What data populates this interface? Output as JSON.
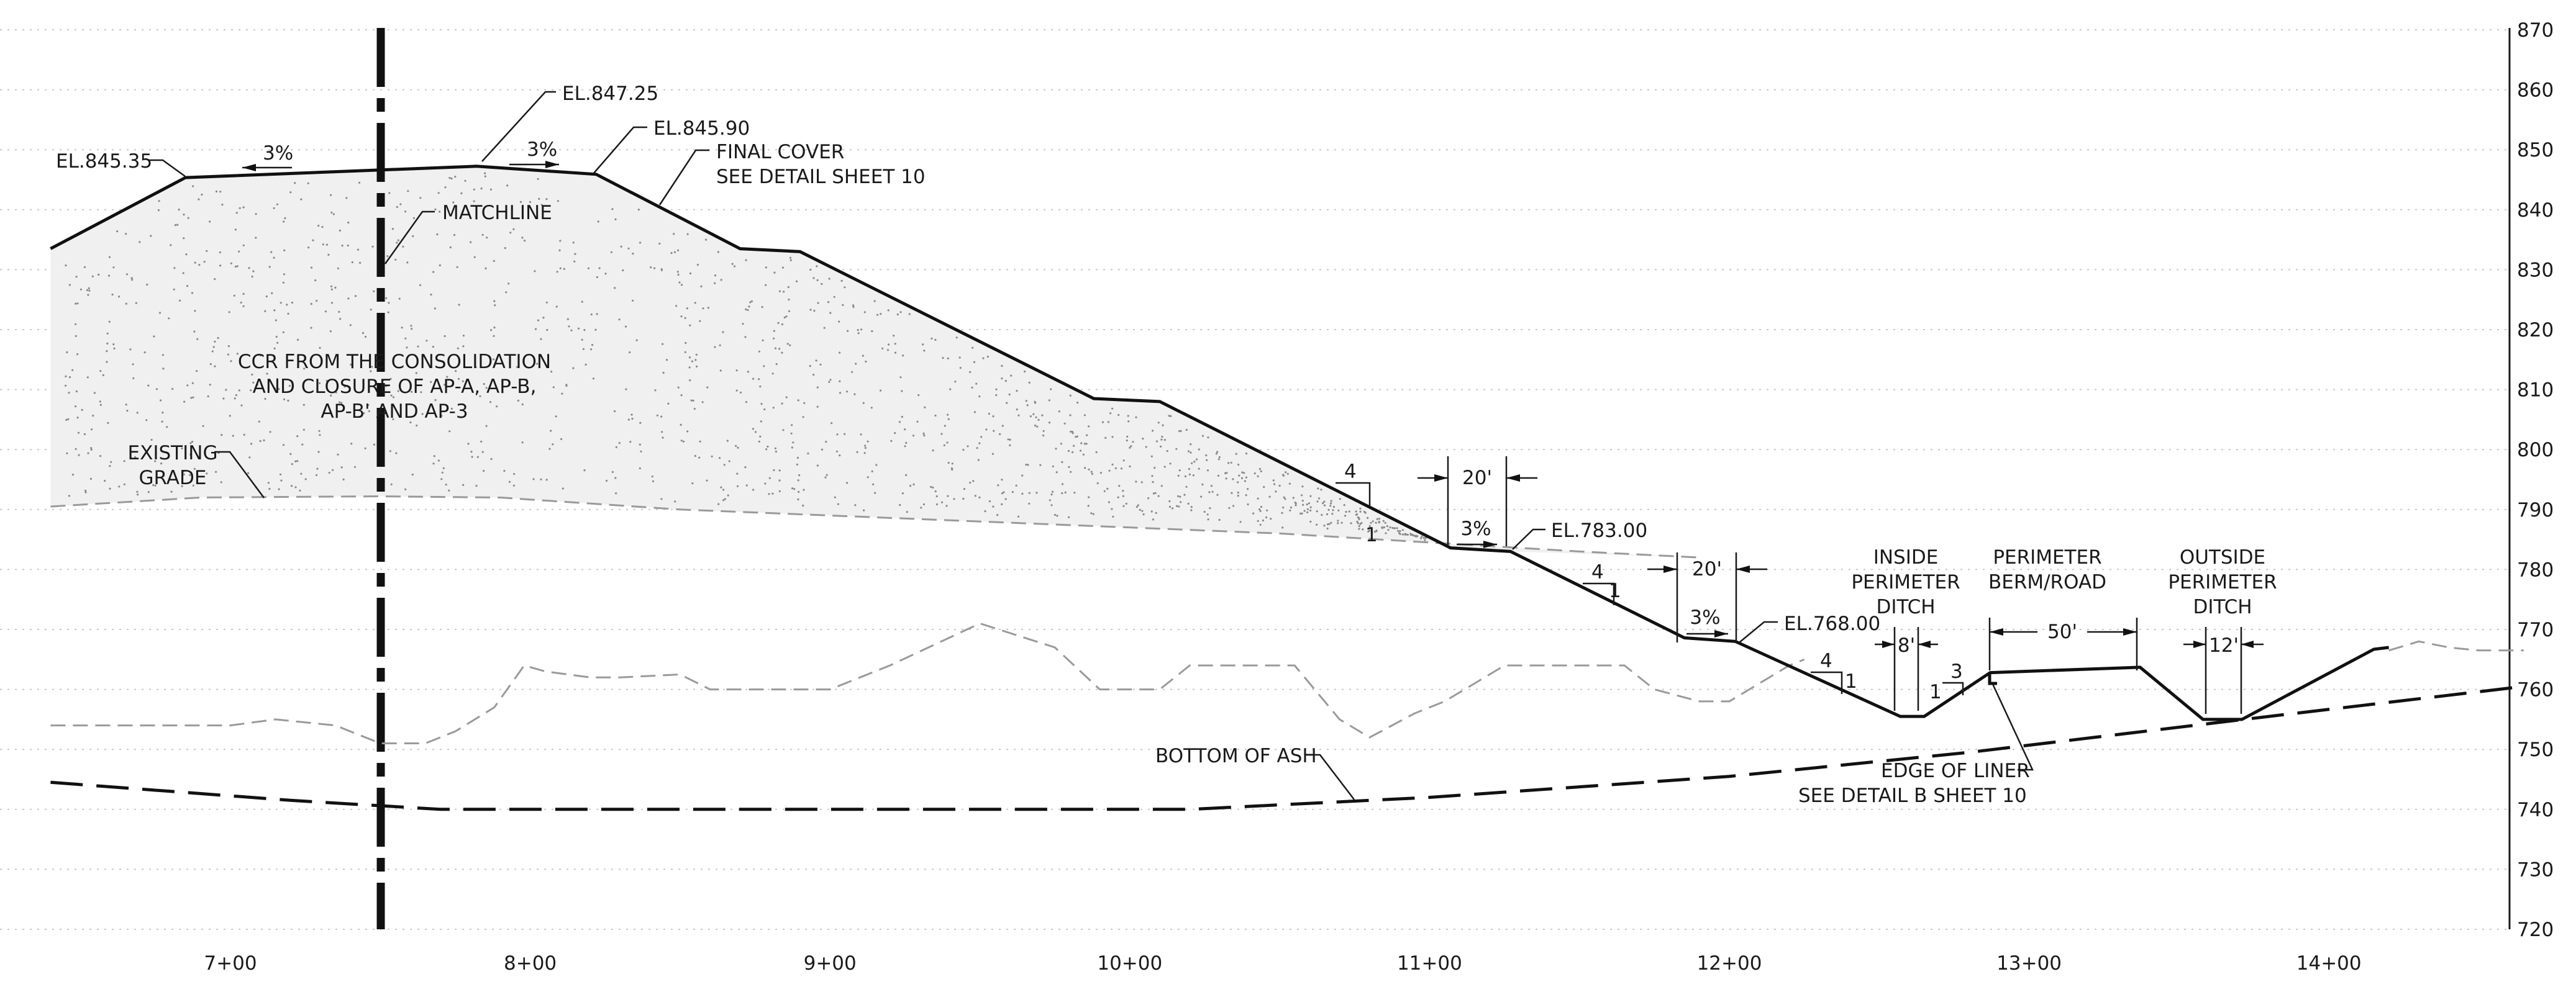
{
  "axes": {
    "elevation_ticks": [
      "870",
      "860",
      "850",
      "840",
      "830",
      "820",
      "810",
      "800",
      "790",
      "780",
      "770",
      "760",
      "750",
      "740",
      "730",
      "720"
    ],
    "station_ticks": [
      "7+00",
      "8+00",
      "9+00",
      "10+00",
      "11+00",
      "12+00",
      "13+00",
      "14+00"
    ]
  },
  "labels": {
    "el_845_35": "EL.845.35",
    "el_847_25": "EL.847.25",
    "el_845_90": "EL.845.90",
    "slope_3pct_left": "3%",
    "slope_3pct_right": "3%",
    "final_cover_1": "FINAL COVER",
    "final_cover_2": "SEE DETAIL SHEET 10",
    "matchline": "MATCHLINE",
    "ccr_1": "CCR FROM THE CONSOLIDATION",
    "ccr_2": "AND CLOSURE OF AP-A, AP-B,",
    "ccr_3": "AP-B' AND AP-3",
    "existing_grade_1": "EXISTING",
    "existing_grade_2": "GRADE",
    "slope1_h": "4",
    "slope1_v": "1",
    "bench1_width": "20'",
    "bench1_slope": "3%",
    "el_783_00": "EL.783.00",
    "slope2_h": "4",
    "slope2_v": "1",
    "bench2_width": "20'",
    "bench2_slope": "3%",
    "el_768_00": "EL.768.00",
    "slope3_h": "4",
    "slope3_v": "1",
    "ditch_side_h": "3",
    "ditch_side_v": "1",
    "inside_ditch_1": "INSIDE",
    "inside_ditch_2": "PERIMETER",
    "inside_ditch_3": "DITCH",
    "inside_ditch_width": "8'",
    "perimeter_berm_1": "PERIMETER",
    "perimeter_berm_2": "BERM/ROAD",
    "perimeter_berm_width": "50'",
    "outside_ditch_1": "OUTSIDE",
    "outside_ditch_2": "PERIMETER",
    "outside_ditch_3": "DITCH",
    "outside_ditch_width": "12'",
    "bottom_of_ash": "BOTTOM OF ASH",
    "edge_of_liner_1": "EDGE OF LINER",
    "edge_of_liner_2": "SEE DETAIL B SHEET 10"
  },
  "profiles": {
    "final_cover": [
      [
        6.4,
        833.5
      ],
      [
        6.85,
        845.35
      ],
      [
        7.82,
        847.25
      ],
      [
        8.22,
        845.9
      ],
      [
        8.7,
        833.5
      ],
      [
        8.9,
        833
      ],
      [
        9.88,
        808.5
      ],
      [
        10.1,
        808
      ],
      [
        11.07,
        783.6
      ],
      [
        11.27,
        783
      ],
      [
        11.85,
        768.6
      ],
      [
        12.02,
        768
      ],
      [
        12.57,
        755.5
      ],
      [
        12.65,
        755.5
      ],
      [
        12.87,
        762.8
      ],
      [
        13.37,
        763.7
      ],
      [
        13.58,
        755
      ],
      [
        13.71,
        755
      ],
      [
        14.15,
        766.7
      ],
      [
        14.2,
        767
      ]
    ],
    "existing_grade": [
      [
        6.4,
        790.5
      ],
      [
        6.9,
        792
      ],
      [
        7.5,
        792.2
      ],
      [
        7.9,
        792
      ],
      [
        8.5,
        790
      ],
      [
        9.5,
        788
      ],
      [
        10.5,
        786
      ],
      [
        11.5,
        783
      ],
      [
        11.9,
        782
      ]
    ],
    "lower_ground": [
      [
        6.4,
        754
      ],
      [
        6.55,
        754
      ],
      [
        7.0,
        754
      ],
      [
        7.15,
        755
      ],
      [
        7.35,
        754
      ],
      [
        7.5,
        751
      ],
      [
        7.65,
        751
      ],
      [
        7.75,
        753
      ],
      [
        7.88,
        757
      ],
      [
        7.98,
        764
      ],
      [
        8.05,
        763
      ],
      [
        8.2,
        762
      ],
      [
        8.3,
        762
      ],
      [
        8.5,
        762.5
      ],
      [
        8.6,
        760
      ],
      [
        9.0,
        760
      ],
      [
        9.2,
        764
      ],
      [
        9.5,
        771
      ],
      [
        9.75,
        767
      ],
      [
        9.9,
        760
      ],
      [
        10.1,
        760
      ],
      [
        10.2,
        764
      ],
      [
        10.55,
        764
      ],
      [
        10.7,
        755
      ],
      [
        10.8,
        752
      ],
      [
        10.95,
        756
      ],
      [
        11.05,
        758
      ],
      [
        11.25,
        764
      ],
      [
        11.65,
        764
      ],
      [
        11.75,
        760
      ],
      [
        11.9,
        758
      ],
      [
        12.0,
        758
      ],
      [
        12.2,
        764
      ],
      [
        12.25,
        765
      ]
    ],
    "outside_ground": [
      [
        14.2,
        766.5
      ],
      [
        14.3,
        768
      ],
      [
        14.4,
        767
      ],
      [
        14.5,
        766.5
      ],
      [
        14.65,
        766.5
      ]
    ],
    "bottom_of_ash": [
      [
        6.4,
        744.5
      ],
      [
        6.8,
        743
      ],
      [
        7.2,
        741.5
      ],
      [
        7.7,
        740
      ],
      [
        8.5,
        740
      ],
      [
        10.2,
        740
      ],
      [
        11.0,
        742
      ],
      [
        12.0,
        745.5
      ],
      [
        12.8,
        749.5
      ],
      [
        13.8,
        755.5
      ],
      [
        14.65,
        760.5
      ]
    ]
  }
}
